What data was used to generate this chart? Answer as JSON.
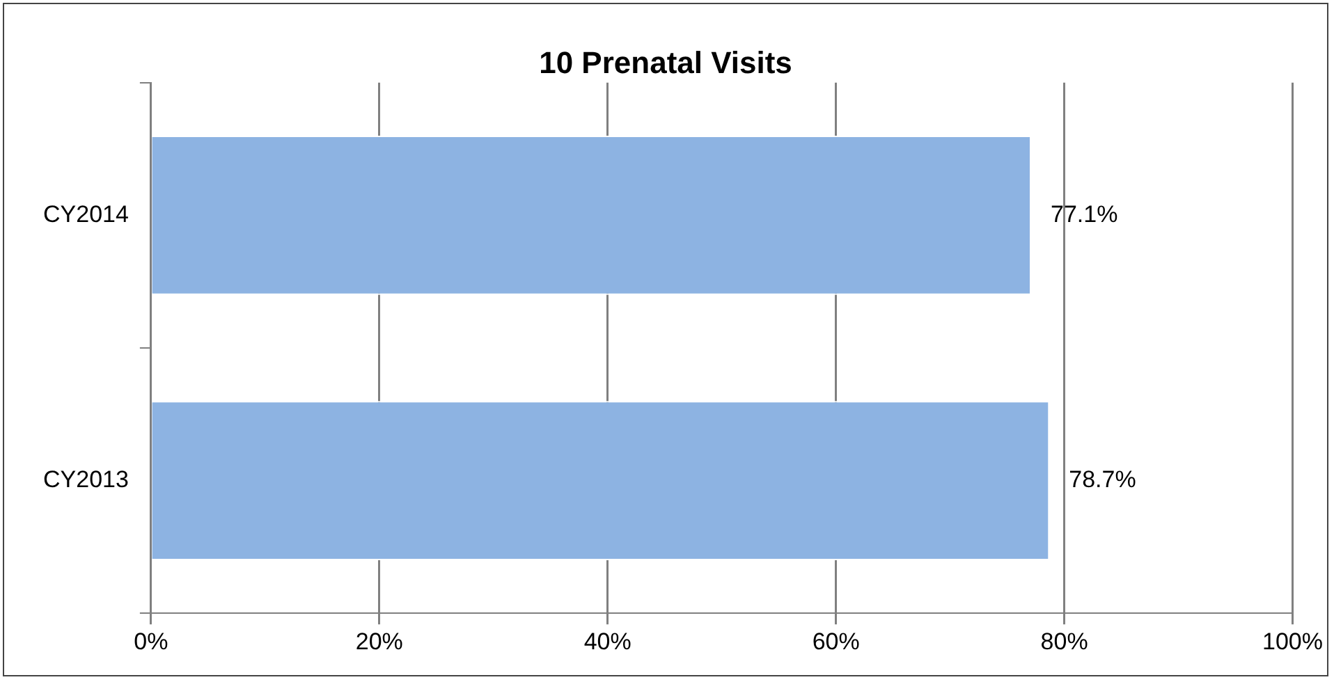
{
  "chart_data": {
    "type": "bar",
    "orientation": "horizontal",
    "title": "10 Prenatal Visits",
    "categories": [
      "CY2014",
      "CY2013"
    ],
    "values": [
      77.1,
      78.7
    ],
    "color": "#8db3e2",
    "value_labels": [
      "77.1%",
      "78.7%"
    ],
    "xlim": [
      0,
      100
    ],
    "xticks": [
      {
        "value": 0,
        "label": "0%"
      },
      {
        "value": 20,
        "label": "20%"
      },
      {
        "value": 40,
        "label": "40%"
      },
      {
        "value": 60,
        "label": "60%"
      },
      {
        "value": 80,
        "label": "80%"
      },
      {
        "value": 100,
        "label": "100%"
      }
    ],
    "grid": "x"
  }
}
